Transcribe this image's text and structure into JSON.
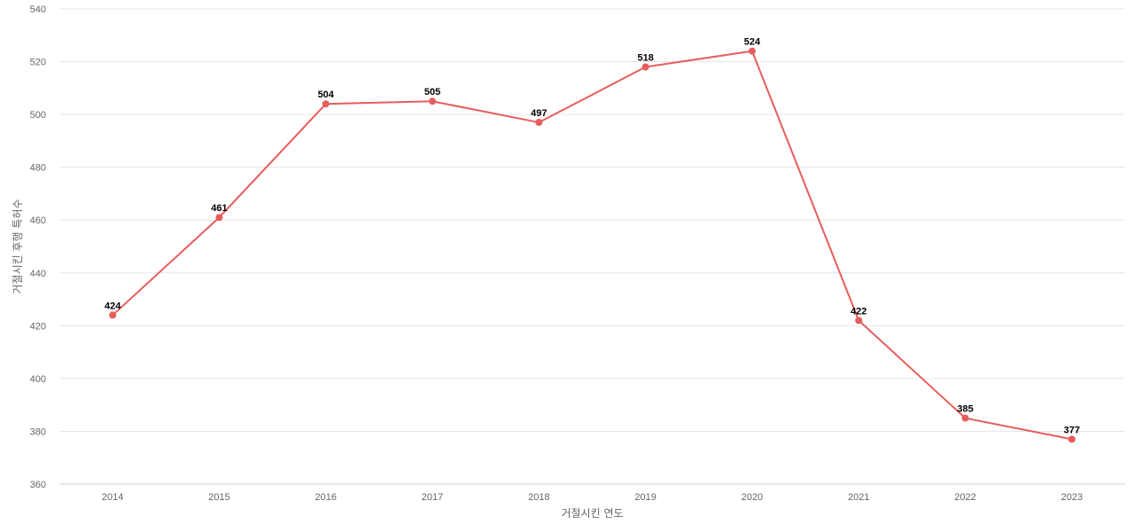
{
  "chart_data": {
    "type": "line",
    "xlabel": "거절시킨 연도",
    "ylabel": "거절시킨 후행 특허수",
    "categories": [
      "2014",
      "2015",
      "2016",
      "2017",
      "2018",
      "2019",
      "2020",
      "2021",
      "2022",
      "2023"
    ],
    "series": [
      {
        "values": [
          424,
          461,
          504,
          505,
          497,
          518,
          524,
          422,
          385,
          377
        ]
      }
    ],
    "ylim": [
      360,
      540
    ],
    "yticks": [
      360,
      380,
      400,
      420,
      440,
      460,
      480,
      500,
      520,
      540
    ],
    "grid": true,
    "color": "#e85c5c"
  }
}
